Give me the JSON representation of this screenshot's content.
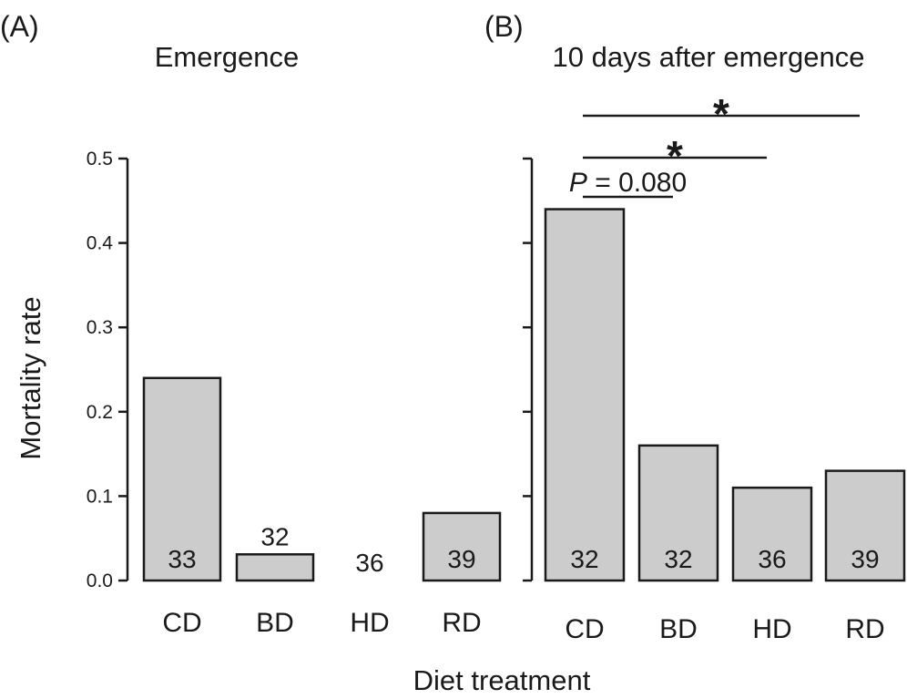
{
  "figure": {
    "ylabel": "Mortality rate",
    "xlabel": "Diet treatment"
  },
  "chart_data": [
    {
      "type": "bar",
      "panel": "(A)",
      "title": "Emergence",
      "categories": [
        "CD",
        "BD",
        "HD",
        "RD"
      ],
      "values": [
        0.24,
        0.031,
        0.0,
        0.08
      ],
      "n_labels": [
        "33",
        "32",
        "36",
        "39"
      ],
      "ylim": [
        0,
        0.5
      ],
      "yticks": [
        "0.0",
        "0.1",
        "0.2",
        "0.3",
        "0.4",
        "0.5"
      ],
      "ylabel": "Mortality rate",
      "xlabel": "Diet treatment",
      "comparisons": []
    },
    {
      "type": "bar",
      "panel": "(B)",
      "title": "10 days after emergence",
      "categories": [
        "CD",
        "BD",
        "HD",
        "RD"
      ],
      "values": [
        0.44,
        0.16,
        0.11,
        0.13
      ],
      "n_labels": [
        "32",
        "32",
        "36",
        "39"
      ],
      "ylim": [
        0,
        0.5
      ],
      "ylabel": "Mortality rate",
      "xlabel": "Diet treatment",
      "comparisons": [
        {
          "from": "CD",
          "to": "BD",
          "p_prefix": "P",
          "p_value": "= 0.080"
        },
        {
          "from": "CD",
          "to": "HD",
          "label": "*"
        },
        {
          "from": "CD",
          "to": "RD",
          "label": "*"
        }
      ]
    }
  ]
}
